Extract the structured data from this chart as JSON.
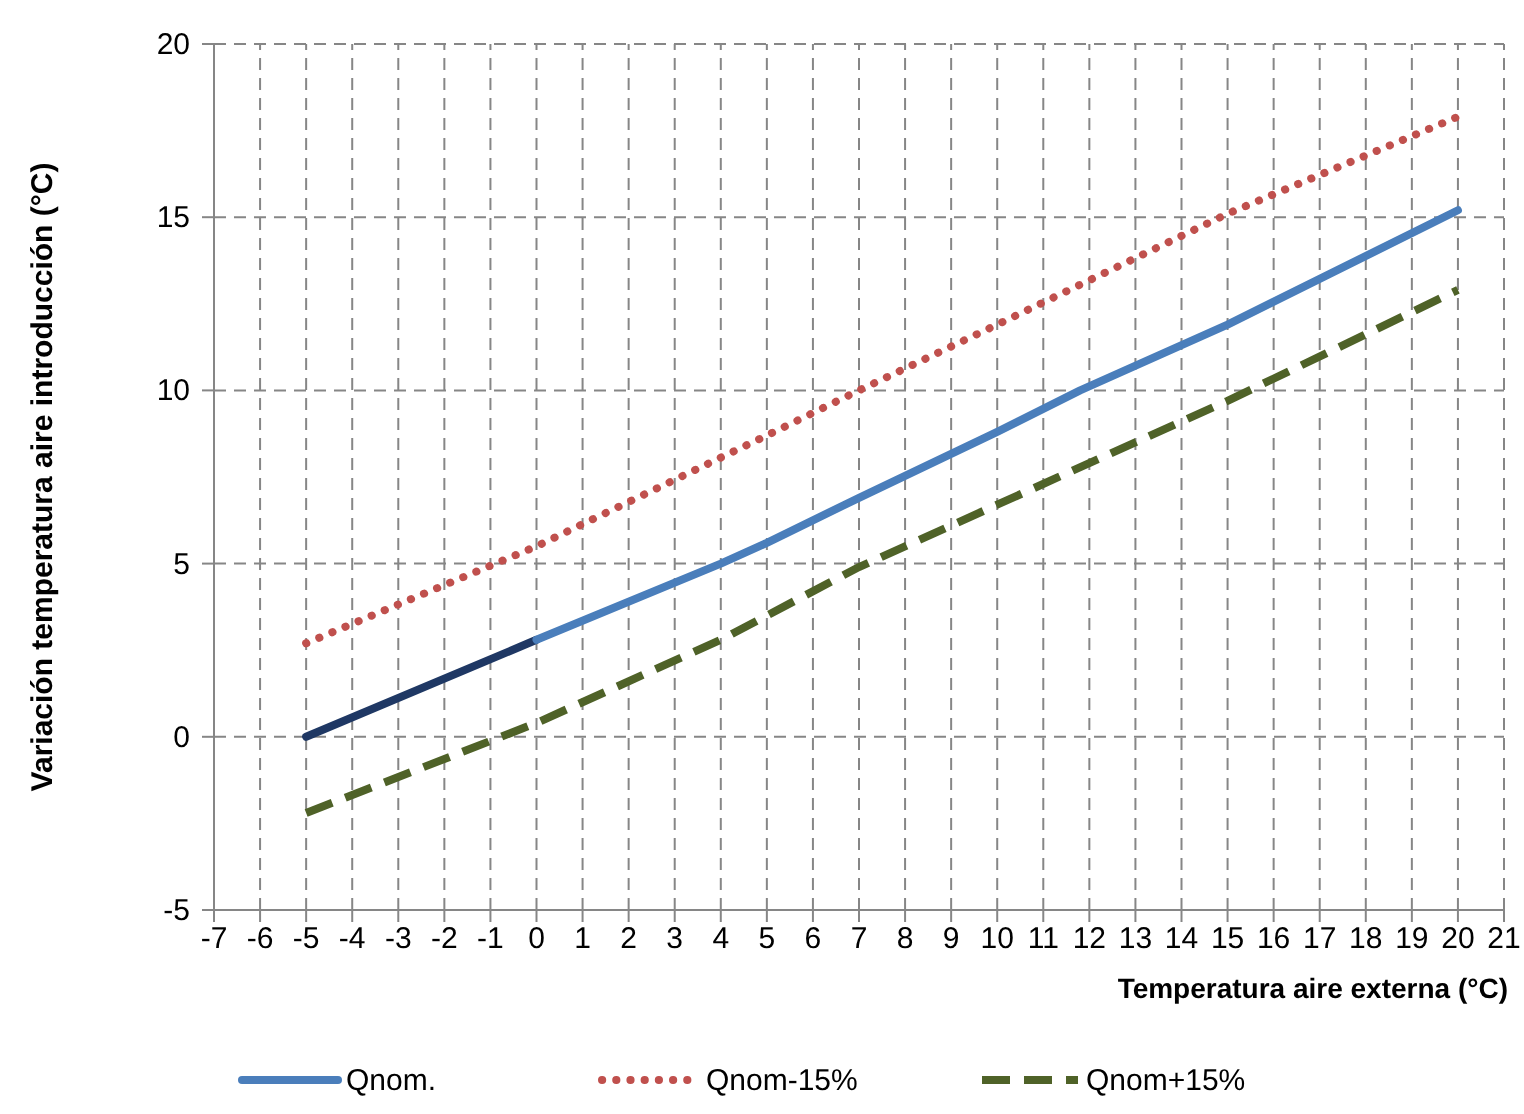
{
  "chart_data": {
    "type": "line",
    "xlabel": "Temperatura aire externa (°C)",
    "ylabel": "Variación temperatura aire introducción (°C)",
    "xlim": [
      -7,
      21
    ],
    "xticks": [
      -7,
      -6,
      -5,
      -4,
      -3,
      -2,
      -1,
      0,
      1,
      2,
      3,
      4,
      5,
      6,
      7,
      8,
      9,
      10,
      11,
      12,
      13,
      14,
      15,
      16,
      17,
      18,
      19,
      20,
      21
    ],
    "ylim": [
      -5,
      20
    ],
    "yticks": [
      -5,
      0,
      5,
      10,
      15,
      20
    ],
    "grid": true,
    "legend": "bottom",
    "marker": "none",
    "series": [
      {
        "color": "#1f3864",
        "line_style": "solid",
        "x": [
          -5,
          0
        ],
        "values": [
          0,
          2.8
        ]
      },
      {
        "name": "Qnom.",
        "color": "#4a7ebb",
        "line_style": "solid",
        "x": [
          0,
          4,
          5,
          7,
          10,
          11.8,
          15,
          20
        ],
        "values": [
          2.8,
          5,
          5.6,
          6.9,
          8.8,
          10,
          11.9,
          15.2
        ]
      },
      {
        "name": "Qnom-15%",
        "color": "#c0504d",
        "line_style": "dotted",
        "x": [
          -5,
          0,
          5,
          7,
          10,
          15,
          20
        ],
        "values": [
          2.7,
          5.5,
          8.7,
          10,
          11.9,
          15.1,
          17.9
        ]
      },
      {
        "name": "Qnom+15%",
        "color": "#4f6228",
        "line_style": "dashed",
        "x": [
          -5,
          0,
          4,
          7,
          10,
          15,
          20
        ],
        "values": [
          -2.2,
          0.4,
          2.8,
          4.9,
          6.7,
          9.7,
          12.9
        ]
      }
    ]
  }
}
